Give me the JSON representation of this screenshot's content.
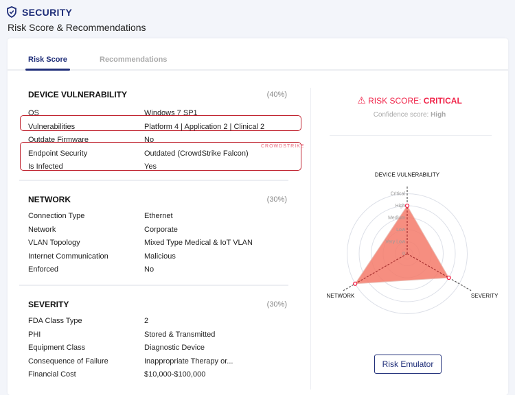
{
  "header": {
    "title": "SECURITY",
    "subtitle": "Risk Score & Recommendations",
    "icon": "shield-check-icon"
  },
  "tabs": [
    {
      "label": "Risk Score",
      "active": true
    },
    {
      "label": "Recommendations",
      "active": false
    }
  ],
  "sections": [
    {
      "title": "DEVICE VULNERABILITY",
      "weight": "(40%)",
      "rows": [
        {
          "label": "OS",
          "value": "Windows 7 SP1"
        },
        {
          "label": "Vulnerabilities",
          "value": "Platform 4 | Application 2 | Clinical  2"
        },
        {
          "label": "Outdate Firmware",
          "value": "No"
        },
        {
          "label": "Endpoint Security",
          "value": "Outdated (CrowdStrike Falcon)"
        },
        {
          "label": "Is Infected",
          "value": "Yes"
        }
      ]
    },
    {
      "title": "NETWORK",
      "weight": "(30%)",
      "rows": [
        {
          "label": "Connection Type",
          "value": "Ethernet"
        },
        {
          "label": "Network",
          "value": "Corporate"
        },
        {
          "label": "VLAN Topology",
          "value": "Mixed Type Medical & IoT VLAN"
        },
        {
          "label": "Internet Communication",
          "value": "Malicious"
        },
        {
          "label": "Enforced",
          "value": "No"
        }
      ]
    },
    {
      "title": "SEVERITY",
      "weight": "(30%)",
      "rows": [
        {
          "label": "FDA Class Type",
          "value": "2"
        },
        {
          "label": "PHI",
          "value": "Stored & Transmitted"
        },
        {
          "label": "Equipment Class",
          "value": "Diagnostic Device"
        },
        {
          "label": "Consequence of Failure",
          "value": "Inappropriate Therapy or..."
        },
        {
          "label": "Financial Cost",
          "value": "$10,000-$100,000"
        }
      ]
    }
  ],
  "crowdstrike_logo": "CROWDSTRIKE",
  "risk": {
    "label": "RISK SCORE: ",
    "value": "CRITICAL",
    "confidence_label": "Confidence score: ",
    "confidence_value": "High",
    "color": "#f0254a"
  },
  "chart_data": {
    "type": "radar",
    "axes": [
      "DEVICE VULNERABILITY",
      "SEVERITY",
      "NETWORK"
    ],
    "levels": [
      "0",
      "Very Low",
      "Low",
      "Medium",
      "High",
      "Critical"
    ],
    "values": [
      "High",
      "High",
      "Critical"
    ],
    "fill": "#f47a6a"
  },
  "risk_emulator_label": "Risk Emulator"
}
